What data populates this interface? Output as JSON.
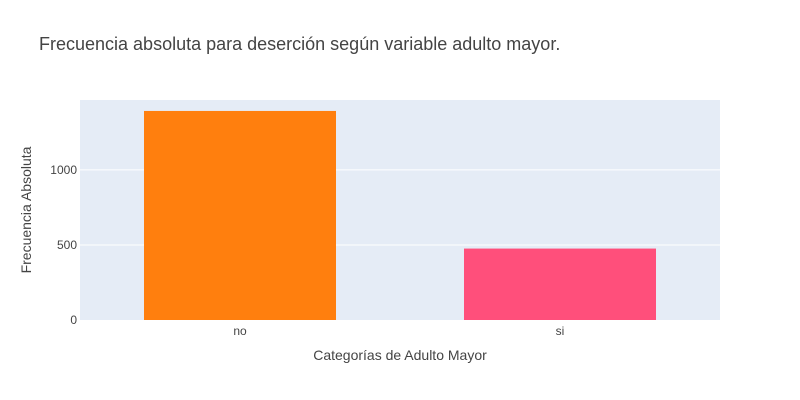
{
  "chart_data": {
    "type": "bar",
    "title": "Frecuencia absoluta para deserción según variable adulto mayor.",
    "xlabel": "Categorías de Adulto Mayor",
    "ylabel": "Frecuencia Absoluta",
    "categories": [
      "no",
      "si"
    ],
    "values": [
      1393,
      476
    ],
    "bar_colors": [
      "#ff7f0e",
      "#ff4f7b"
    ],
    "yticks": [
      0,
      500,
      1000
    ],
    "ylim": [
      0,
      1466
    ],
    "grid": true,
    "plot_background": "#e5ecf6",
    "legend": "none"
  }
}
